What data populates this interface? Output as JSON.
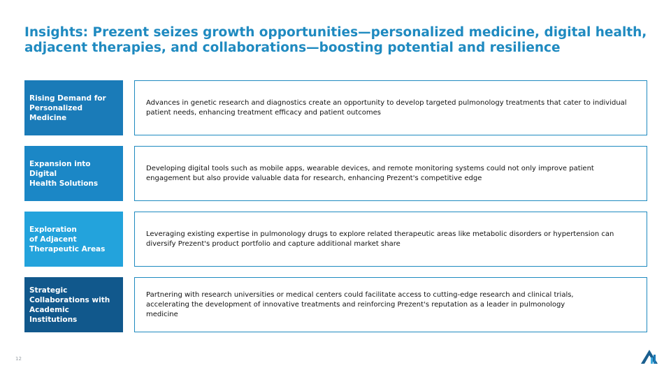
{
  "title": "Insights: Prezent seizes growth opportunities—personalized medicine, digital health, adjacent therapies, and collaborations—boosting potential and resilience",
  "colors": {
    "title": "#1f8ac0",
    "box_border": "#1f8ac0",
    "label_1": "#1a7bb8",
    "label_2": "#1b87c6",
    "label_3": "#23a3dc",
    "label_4": "#11588c"
  },
  "insights": [
    {
      "label": "Rising Demand for\nPersonalized Medicine",
      "text": "Advances in genetic research and diagnostics create an opportunity to develop targeted pulmonology treatments that cater to individual patient needs, enhancing treatment efficacy and patient outcomes"
    },
    {
      "label": "Expansion into Digital\nHealth Solutions",
      "text": "Developing digital tools such as mobile apps, wearable devices, and remote monitoring systems could not only improve patient engagement but also provide valuable data for research, enhancing Prezent's competitive edge"
    },
    {
      "label": "Exploration\nof Adjacent\nTherapeutic Areas",
      "text": "Leveraging existing expertise in pulmonology drugs to explore related therapeutic areas like metabolic disorders or hypertension can diversify Prezent's product portfolio and capture additional market share"
    },
    {
      "label": "Strategic\nCollaborations with\nAcademic Institutions",
      "text": "Partnering with research universities or medical centers could facilitate access to cutting-edge research and clinical trials, accelerating the development of innovative treatments and reinforcing Prezent's reputation as a leader in pulmonology medicine"
    }
  ],
  "page_number": "12",
  "logo_icon": "prezent-logo-icon"
}
